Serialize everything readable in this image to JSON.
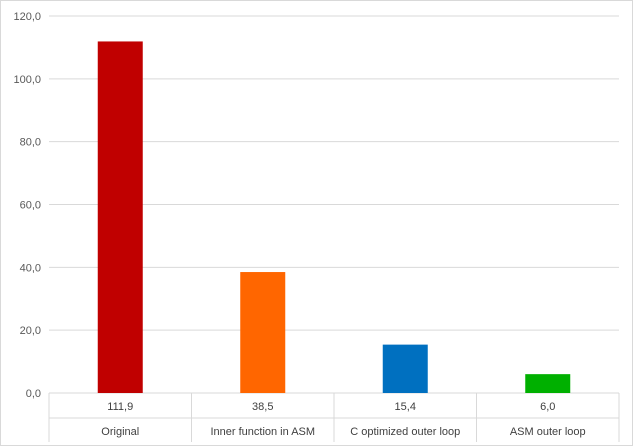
{
  "chart_data": {
    "type": "bar",
    "categories": [
      "Original",
      "Inner function in ASM",
      "C optimized outer loop",
      "ASM outer loop"
    ],
    "values": [
      111.9,
      38.5,
      15.4,
      6.0
    ],
    "value_labels": [
      "111,9",
      "38,5",
      "15,4",
      "6,0"
    ],
    "colors": [
      "#c00000",
      "#ff6600",
      "#0070c0",
      "#00b000"
    ],
    "ylim": [
      0,
      120
    ],
    "yticks": [
      0,
      20,
      40,
      60,
      80,
      100,
      120
    ],
    "ytick_labels": [
      "0,0",
      "20,0",
      "40,0",
      "60,0",
      "80,0",
      "100,0",
      "120,0"
    ],
    "grid": true,
    "title": "",
    "xlabel": "",
    "ylabel": "",
    "data_table_below": true
  }
}
